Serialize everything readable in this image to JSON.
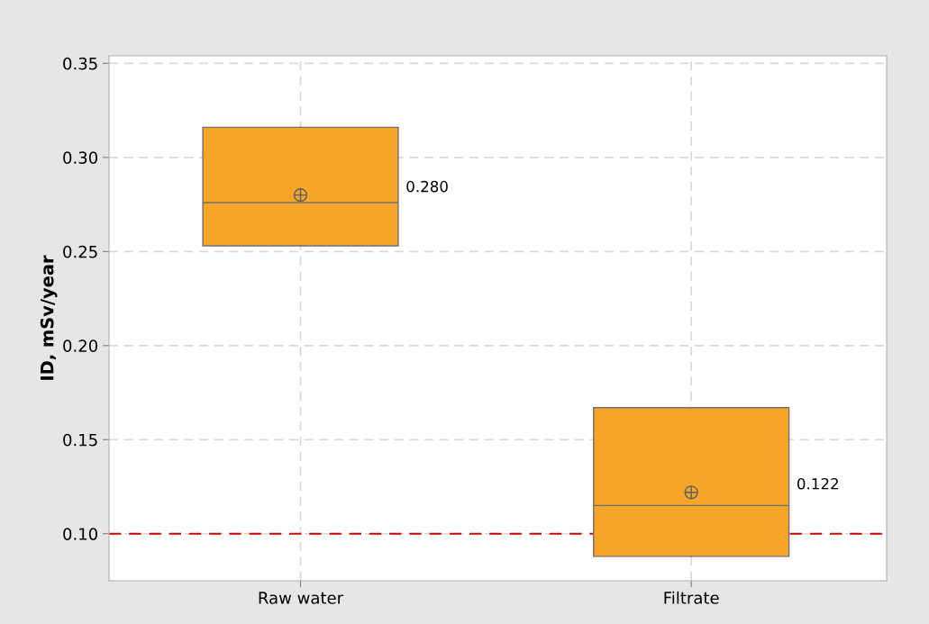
{
  "chart_data": {
    "type": "box",
    "ylabel": "ID, mSv/year",
    "categories": [
      "Raw water",
      "Filtrate"
    ],
    "boxes": [
      {
        "low": 0.253,
        "q1": 0.253,
        "median": 0.276,
        "q3": 0.316,
        "high": 0.316,
        "mean": 0.28
      },
      {
        "low": 0.088,
        "q1": 0.088,
        "median": 0.115,
        "q3": 0.167,
        "high": 0.167,
        "mean": 0.122
      }
    ],
    "color": "#f7a528",
    "ylim": [
      0.075,
      0.354
    ],
    "yticks": [
      {
        "value": 0.1,
        "label": "0.10"
      },
      0.15,
      {
        "value": 0.2,
        "label": "0.20"
      },
      0.25,
      {
        "value": 0.3,
        "label": "0.30"
      },
      0.35
    ],
    "grid": true,
    "ref_lines": [
      {
        "axis": "y",
        "value": 0.1,
        "color": "#cc0000",
        "line_style": "dashed"
      }
    ],
    "annotations": [
      "0.280",
      "0.122"
    ]
  }
}
